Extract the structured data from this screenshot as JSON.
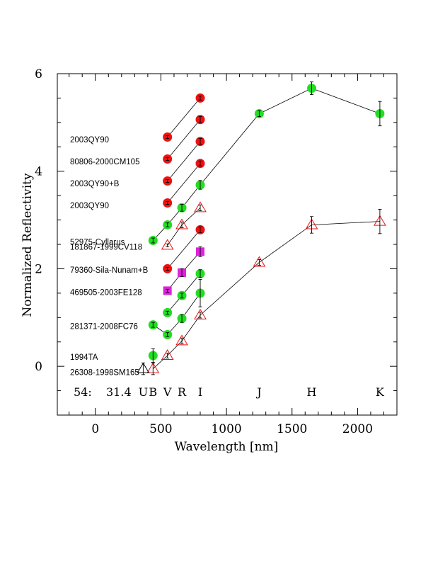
{
  "chart_data": {
    "type": "scatter",
    "xlabel": "Wavelength [nm]",
    "ylabel": "Normalized Reflectivity",
    "xlim": [
      -290,
      2300
    ],
    "ylim": [
      -1,
      6
    ],
    "x_ticks": [
      0,
      500,
      1000,
      1500,
      2000
    ],
    "y_ticks": [
      0,
      2,
      4,
      6
    ],
    "grid": false,
    "footer": {
      "index": "54:",
      "value": "31.4"
    },
    "bands": [
      {
        "label": "U",
        "x": 365
      },
      {
        "label": "B",
        "x": 440
      },
      {
        "label": "V",
        "x": 550
      },
      {
        "label": "R",
        "x": 660
      },
      {
        "label": "I",
        "x": 800
      },
      {
        "label": "J",
        "x": 1250
      },
      {
        "label": "H",
        "x": 1650
      },
      {
        "label": "K",
        "x": 2170
      }
    ],
    "colors": {
      "red": "#ee1111",
      "green": "#22dd22",
      "magenta": "#dd22dd",
      "line": "#000000"
    },
    "labels": [
      {
        "text": "2003QY90",
        "y": 4.65
      },
      {
        "text": "80806-2000CM105",
        "y": 4.2
      },
      {
        "text": "2003QY90+B",
        "y": 3.75
      },
      {
        "text": "2003QY90",
        "y": 3.3
      },
      {
        "text": "52975-Cyllarus",
        "y": 2.55
      },
      {
        "text": "181867-1999CV118",
        "y": 2.45
      },
      {
        "text": "79360-Sila-Nunam+B",
        "y": 1.98
      },
      {
        "text": "469505-2003FE128",
        "y": 1.52
      },
      {
        "text": "281371-2008FC76",
        "y": 0.82
      },
      {
        "text": "1994TA",
        "y": 0.19
      },
      {
        "text": "26308-1998SM165",
        "y": -0.12
      }
    ],
    "series": [
      {
        "marker": "circle",
        "color": "red",
        "points": [
          {
            "x": 550,
            "y": 4.7,
            "err": 0.03
          },
          {
            "x": 800,
            "y": 5.5,
            "err": 0.04
          }
        ]
      },
      {
        "marker": "circle",
        "color": "red",
        "points": [
          {
            "x": 550,
            "y": 4.25,
            "err": 0.03
          },
          {
            "x": 800,
            "y": 5.06,
            "err": 0.06
          }
        ]
      },
      {
        "marker": "circle",
        "color": "red",
        "points": [
          {
            "x": 550,
            "y": 3.8,
            "err": 0.03
          },
          {
            "x": 800,
            "y": 4.61,
            "err": 0.06
          }
        ]
      },
      {
        "marker": "circle",
        "color": "red",
        "points": [
          {
            "x": 550,
            "y": 3.35,
            "err": 0.03
          },
          {
            "x": 800,
            "y": 4.16,
            "err": 0.05
          }
        ]
      },
      {
        "marker": "circle",
        "color": "green",
        "points": [
          {
            "x": 440,
            "y": 2.58,
            "err": 0.05
          },
          {
            "x": 550,
            "y": 2.9,
            "err": 0.04
          },
          {
            "x": 660,
            "y": 3.25,
            "err": 0.07
          },
          {
            "x": 800,
            "y": 3.72,
            "err": 0.09
          },
          {
            "x": 1250,
            "y": 5.18,
            "err": 0.06
          },
          {
            "x": 1650,
            "y": 5.7,
            "err": 0.13
          },
          {
            "x": 2170,
            "y": 5.18,
            "err": 0.25
          }
        ]
      },
      {
        "marker": "triangle",
        "color": "red",
        "points": [
          {
            "x": 550,
            "y": 2.48,
            "err": 0.03
          },
          {
            "x": 660,
            "y": 2.9,
            "err": 0.06
          },
          {
            "x": 800,
            "y": 3.25,
            "err": 0.06
          }
        ]
      },
      {
        "marker": "circle",
        "color": "red",
        "points": [
          {
            "x": 550,
            "y": 2.0,
            "err": 0.03
          },
          {
            "x": 800,
            "y": 2.8,
            "err": 0.06
          }
        ]
      },
      {
        "marker": "square",
        "color": "magenta",
        "points": [
          {
            "x": 550,
            "y": 1.55,
            "err": 0.03
          },
          {
            "x": 660,
            "y": 1.92,
            "err": 0.08
          },
          {
            "x": 800,
            "y": 2.35,
            "err": 0.1
          }
        ]
      },
      {
        "marker": "circle",
        "color": "green",
        "points": [
          {
            "x": 550,
            "y": 1.1,
            "err": 0.03
          },
          {
            "x": 660,
            "y": 1.45,
            "err": 0.05
          },
          {
            "x": 800,
            "y": 1.9,
            "err": 0.08
          }
        ]
      },
      {
        "marker": "circle",
        "color": "green",
        "points": [
          {
            "x": 440,
            "y": 0.85,
            "err": 0.05
          },
          {
            "x": 550,
            "y": 0.65,
            "err": 0.04
          },
          {
            "x": 660,
            "y": 0.98,
            "err": 0.08
          },
          {
            "x": 800,
            "y": 1.5,
            "err": 0.28
          }
        ]
      },
      {
        "marker": "triangle",
        "color": "red",
        "points": [
          {
            "x": 440,
            "y": -0.05,
            "err": 0.12
          },
          {
            "x": 550,
            "y": 0.22,
            "err": 0.05
          },
          {
            "x": 660,
            "y": 0.52,
            "err": 0.06
          },
          {
            "x": 800,
            "y": 1.05,
            "err": 0.06
          },
          {
            "x": 1250,
            "y": 2.13,
            "err": 0.06
          },
          {
            "x": 1650,
            "y": 2.9,
            "err": 0.17
          },
          {
            "x": 2170,
            "y": 2.97,
            "err": 0.25
          }
        ]
      },
      {
        "marker": "circle",
        "color": "green",
        "points": [
          {
            "x": 440,
            "y": 0.22,
            "err": 0.14
          }
        ]
      },
      {
        "marker": "triangle",
        "color": "none",
        "points": [
          {
            "x": 365,
            "y": -0.05,
            "err": 0.12
          }
        ]
      }
    ]
  }
}
